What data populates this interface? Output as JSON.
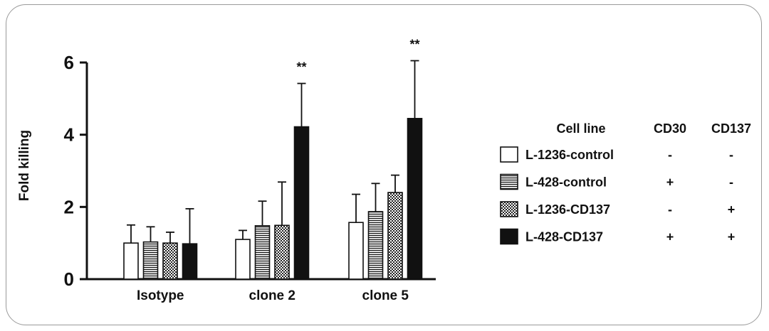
{
  "chart_data": {
    "type": "bar",
    "ylabel": "Fold killing",
    "ylim": [
      0,
      6
    ],
    "yticks": [
      "0",
      "2",
      "4",
      "6"
    ],
    "categories": [
      "Isotype",
      "clone 2",
      "clone 5"
    ],
    "series": [
      {
        "name": "L-1236-control",
        "pattern": "white",
        "values": [
          1.0,
          1.1,
          1.57
        ],
        "errors": [
          0.5,
          0.25,
          0.78
        ]
      },
      {
        "name": "L-428-control",
        "pattern": "horizontal-lines",
        "values": [
          1.03,
          1.48,
          1.87
        ],
        "errors": [
          0.42,
          0.68,
          0.78
        ]
      },
      {
        "name": "L-1236-CD137",
        "pattern": "dotted",
        "values": [
          1.0,
          1.49,
          2.4
        ],
        "errors": [
          0.3,
          1.2,
          0.48
        ]
      },
      {
        "name": "L-428-CD137",
        "pattern": "black",
        "values": [
          0.98,
          4.22,
          4.45
        ],
        "errors": [
          0.97,
          1.2,
          1.6
        ]
      }
    ],
    "significance": [
      {
        "category": "clone 2",
        "series": "L-428-CD137",
        "label": "**"
      },
      {
        "category": "clone 5",
        "series": "L-428-CD137",
        "label": "**"
      }
    ],
    "legend": {
      "headers": {
        "cell_line": "Cell line",
        "cd30": "CD30",
        "cd137": "CD137"
      },
      "rows": [
        {
          "cell_line": "L-1236-control",
          "cd30": "-",
          "cd137": "-"
        },
        {
          "cell_line": "L-428-control",
          "cd30": "+",
          "cd137": "-"
        },
        {
          "cell_line": "L-1236-CD137",
          "cd30": "-",
          "cd137": "+"
        },
        {
          "cell_line": "L-428-CD137",
          "cd30": "+",
          "cd137": "+"
        }
      ]
    }
  }
}
